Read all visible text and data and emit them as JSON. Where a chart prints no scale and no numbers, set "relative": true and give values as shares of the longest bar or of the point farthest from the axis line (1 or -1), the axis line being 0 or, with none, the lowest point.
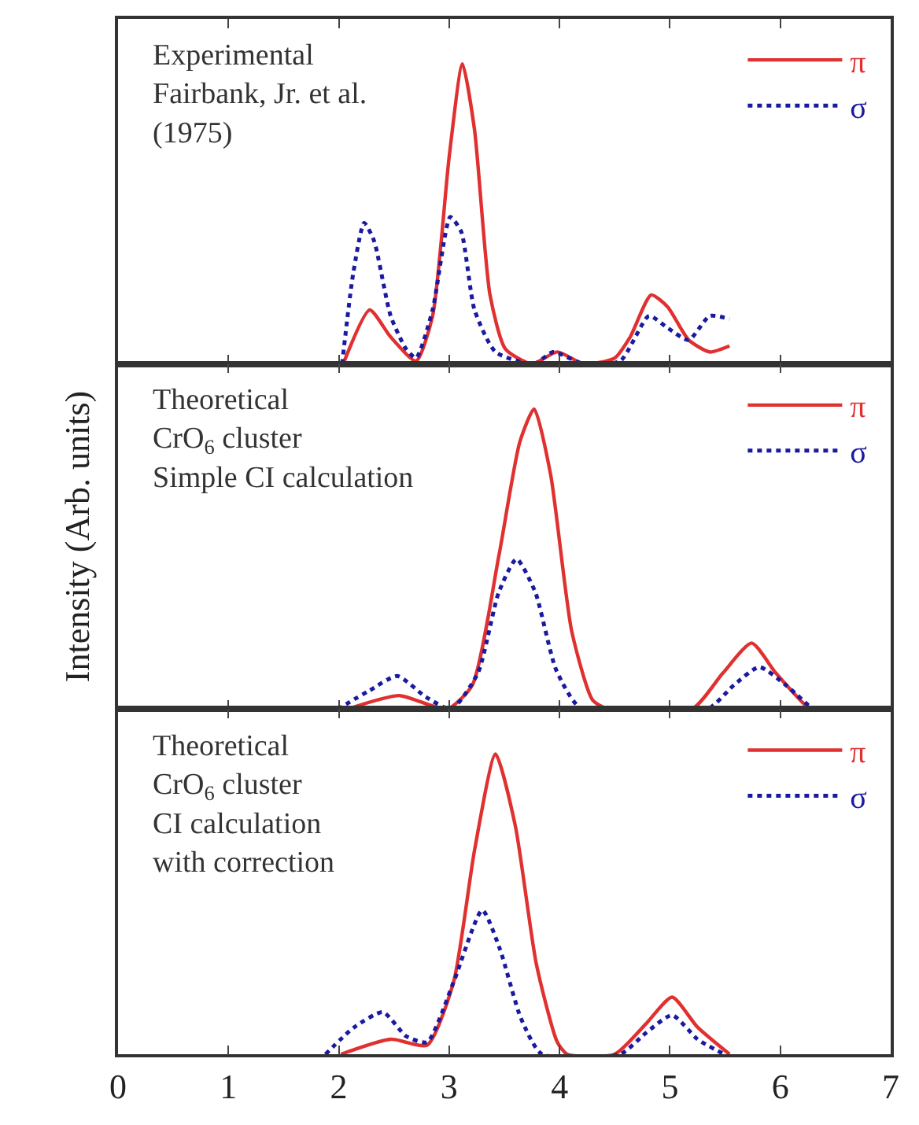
{
  "chart_data": [
    {
      "type": "line",
      "relative": true,
      "xlim": [
        0,
        7
      ],
      "xticks": [
        0,
        1,
        2,
        3,
        4,
        5,
        6,
        7
      ],
      "tick_labels": false,
      "legend": "top right",
      "marker": "none",
      "annotations": [
        "Experimental\nFairbank, Jr. et al.\n(1975)"
      ],
      "series": [
        {
          "name": "π",
          "color": "#e03030",
          "line_style": "solid",
          "x": [
            2.04,
            2.28,
            2.47,
            2.7,
            2.85,
            3.0,
            3.12,
            3.23,
            3.37,
            3.51,
            3.75,
            3.98,
            4.22,
            4.5,
            4.64,
            4.83,
            4.98,
            5.17,
            5.36,
            5.54
          ],
          "values": [
            0,
            0.18,
            0.09,
            0.01,
            0.16,
            0.69,
            1.0,
            0.78,
            0.23,
            0.05,
            0,
            0.04,
            0,
            0.02,
            0.09,
            0.23,
            0.19,
            0.08,
            0.04,
            0.06
          ]
        },
        {
          "name": "σ",
          "color": "#1a1aa0",
          "line_style": "dotted",
          "x": [
            2.03,
            2.13,
            2.23,
            2.32,
            2.47,
            2.61,
            2.7,
            2.85,
            3.01,
            3.11,
            3.23,
            3.42,
            3.77,
            3.94,
            4.22,
            4.55,
            4.81,
            4.98,
            5.17,
            5.36,
            5.54
          ],
          "values": [
            0,
            0.3,
            0.47,
            0.41,
            0.16,
            0.05,
            0.02,
            0.18,
            0.49,
            0.44,
            0.18,
            0.04,
            0,
            0.04,
            0,
            0.01,
            0.16,
            0.12,
            0.08,
            0.16,
            0.15
          ]
        }
      ]
    },
    {
      "type": "line",
      "relative": true,
      "xlim": [
        0,
        7
      ],
      "xticks": [
        0,
        1,
        2,
        3,
        4,
        5,
        6,
        7
      ],
      "tick_labels": false,
      "legend": "top right",
      "marker": "none",
      "ylabel": "Intensity (Arb. units)",
      "annotations": [
        "Theoretical\nCrO$_{6}$ cluster\nSimple CI calculation"
      ],
      "series": [
        {
          "name": "π",
          "color": "#e03030",
          "line_style": "solid",
          "x": [
            2.08,
            2.55,
            2.98,
            3.21,
            3.45,
            3.64,
            3.77,
            3.92,
            4.11,
            4.3,
            4.44,
            5.2,
            5.48,
            5.74,
            5.96,
            6.24,
            6.33
          ],
          "values": [
            0,
            0.045,
            0,
            0.08,
            0.51,
            0.89,
            1.0,
            0.78,
            0.26,
            0.03,
            0,
            0,
            0.12,
            0.22,
            0.12,
            0.01,
            0
          ]
        },
        {
          "name": "σ",
          "color": "#1a1aa0",
          "line_style": "dotted",
          "x": [
            1.99,
            2.27,
            2.53,
            2.79,
            3.02,
            3.26,
            3.45,
            3.61,
            3.78,
            3.97,
            4.2,
            5.34,
            5.58,
            5.81,
            6.05,
            6.29
          ],
          "values": [
            0,
            0.06,
            0.11,
            0.04,
            0,
            0.12,
            0.39,
            0.5,
            0.39,
            0.13,
            0,
            0,
            0.08,
            0.14,
            0.08,
            0
          ]
        }
      ]
    },
    {
      "type": "line",
      "relative": true,
      "xlim": [
        0,
        7
      ],
      "xticks": [
        0,
        1,
        2,
        3,
        4,
        5,
        6,
        7
      ],
      "tick_labels": "x",
      "legend": "top right",
      "marker": "none",
      "annotations": [
        "Theoretical\nCrO$_{6}$ cluster\nCI calculation\nwith correction"
      ],
      "series": [
        {
          "name": "π",
          "color": "#e03030",
          "line_style": "solid",
          "x": [
            2.02,
            2.47,
            2.8,
            3.04,
            3.23,
            3.42,
            3.6,
            3.79,
            3.98,
            4.07,
            4.5,
            4.78,
            5.02,
            5.25,
            5.54
          ],
          "values": [
            0,
            0.05,
            0.03,
            0.24,
            0.68,
            1.0,
            0.76,
            0.3,
            0.04,
            0,
            0,
            0.1,
            0.19,
            0.09,
            0
          ]
        },
        {
          "name": "σ",
          "color": "#1a1aa0",
          "line_style": "dotted",
          "x": [
            1.88,
            2.14,
            2.4,
            2.61,
            2.8,
            3.04,
            3.3,
            3.46,
            3.65,
            3.84,
            4.55,
            4.78,
            5.02,
            5.25,
            5.49
          ],
          "values": [
            0,
            0.09,
            0.14,
            0.06,
            0.04,
            0.24,
            0.48,
            0.35,
            0.12,
            0,
            0,
            0.07,
            0.13,
            0.05,
            0
          ]
        }
      ]
    }
  ]
}
